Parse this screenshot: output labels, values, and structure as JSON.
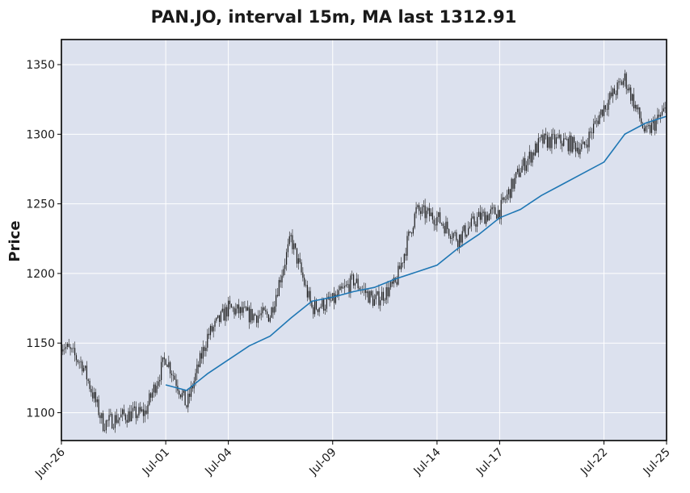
{
  "colors": {
    "plot_background": "#dce1ee",
    "grid": "#ffffff",
    "candle": "#1a1a1a",
    "ma_line": "#1f77b4"
  },
  "chart_data": {
    "type": "candlestick",
    "title": "PAN.JO, interval 15m, MA last 1312.91",
    "xlabel": "",
    "ylabel": "Price",
    "ylim": [
      1080,
      1368
    ],
    "xlim": [
      "2025-06-26",
      "2025-07-25"
    ],
    "grid": true,
    "y_ticks": [
      1100,
      1150,
      1200,
      1250,
      1300,
      1350
    ],
    "x_ticks": [
      {
        "label": "Jun-26",
        "date": "2025-06-26"
      },
      {
        "label": "Jul-01",
        "date": "2025-07-01"
      },
      {
        "label": "Jul-04",
        "date": "2025-07-04"
      },
      {
        "label": "Jul-09",
        "date": "2025-07-09"
      },
      {
        "label": "Jul-14",
        "date": "2025-07-14"
      },
      {
        "label": "Jul-17",
        "date": "2025-07-17"
      },
      {
        "label": "Jul-22",
        "date": "2025-07-22"
      },
      {
        "label": "Jul-25",
        "date": "2025-07-25"
      }
    ],
    "price_series": {
      "name": "Close",
      "points": [
        {
          "date": "2025-06-26",
          "close": 1150
        },
        {
          "date": "2025-06-27",
          "close": 1135
        },
        {
          "date": "2025-06-28",
          "close": 1092
        },
        {
          "date": "2025-06-29",
          "close": 1098
        },
        {
          "date": "2025-06-30",
          "close": 1100
        },
        {
          "date": "2025-07-01",
          "close": 1140
        },
        {
          "date": "2025-07-02",
          "close": 1105
        },
        {
          "date": "2025-07-03",
          "close": 1155
        },
        {
          "date": "2025-07-04",
          "close": 1175
        },
        {
          "date": "2025-07-05",
          "close": 1170
        },
        {
          "date": "2025-07-06",
          "close": 1170
        },
        {
          "date": "2025-07-07",
          "close": 1225
        },
        {
          "date": "2025-07-08",
          "close": 1175
        },
        {
          "date": "2025-07-09",
          "close": 1180
        },
        {
          "date": "2025-07-10",
          "close": 1195
        },
        {
          "date": "2025-07-11",
          "close": 1180
        },
        {
          "date": "2025-07-12",
          "close": 1192
        },
        {
          "date": "2025-07-13",
          "close": 1245
        },
        {
          "date": "2025-07-14",
          "close": 1240
        },
        {
          "date": "2025-07-15",
          "close": 1225
        },
        {
          "date": "2025-07-16",
          "close": 1240
        },
        {
          "date": "2025-07-17",
          "close": 1245
        },
        {
          "date": "2025-07-18",
          "close": 1275
        },
        {
          "date": "2025-07-19",
          "close": 1295
        },
        {
          "date": "2025-07-20",
          "close": 1295
        },
        {
          "date": "2025-07-21",
          "close": 1290
        },
        {
          "date": "2025-07-22",
          "close": 1320
        },
        {
          "date": "2025-07-23",
          "close": 1340
        },
        {
          "date": "2025-07-24",
          "close": 1300
        },
        {
          "date": "2025-07-25",
          "close": 1318
        }
      ]
    },
    "ma_series": {
      "name": "MA",
      "last_value": 1312.91,
      "points": [
        {
          "date": "2025-07-01",
          "value": 1120
        },
        {
          "date": "2025-07-02",
          "value": 1116
        },
        {
          "date": "2025-07-03",
          "value": 1128
        },
        {
          "date": "2025-07-04",
          "value": 1138
        },
        {
          "date": "2025-07-05",
          "value": 1148
        },
        {
          "date": "2025-07-06",
          "value": 1155
        },
        {
          "date": "2025-07-07",
          "value": 1168
        },
        {
          "date": "2025-07-08",
          "value": 1180
        },
        {
          "date": "2025-07-09",
          "value": 1183
        },
        {
          "date": "2025-07-10",
          "value": 1187
        },
        {
          "date": "2025-07-11",
          "value": 1190
        },
        {
          "date": "2025-07-12",
          "value": 1196
        },
        {
          "date": "2025-07-13",
          "value": 1201
        },
        {
          "date": "2025-07-14",
          "value": 1206
        },
        {
          "date": "2025-07-15",
          "value": 1218
        },
        {
          "date": "2025-07-16",
          "value": 1228
        },
        {
          "date": "2025-07-17",
          "value": 1240
        },
        {
          "date": "2025-07-18",
          "value": 1246
        },
        {
          "date": "2025-07-19",
          "value": 1256
        },
        {
          "date": "2025-07-20",
          "value": 1264
        },
        {
          "date": "2025-07-21",
          "value": 1272
        },
        {
          "date": "2025-07-22",
          "value": 1280
        },
        {
          "date": "2025-07-23",
          "value": 1300
        },
        {
          "date": "2025-07-24",
          "value": 1308
        },
        {
          "date": "2025-07-25",
          "value": 1312.91
        }
      ]
    }
  }
}
